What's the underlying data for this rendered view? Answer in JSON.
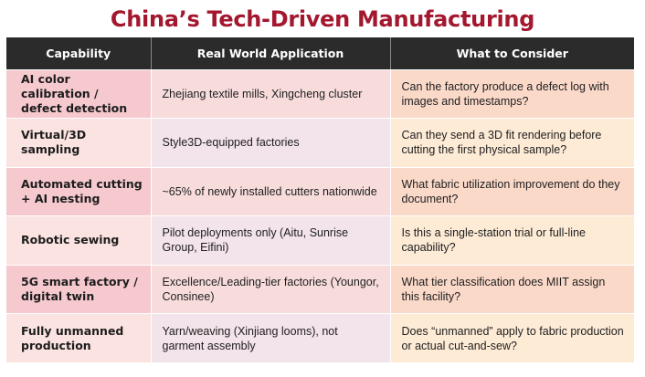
{
  "title": "China’s Tech-Driven Manufacturing",
  "table": {
    "headers": [
      "Capability",
      "Real World Application",
      "What to Consider"
    ],
    "rows": [
      {
        "capability": "AI color calibration / defect detection",
        "application": "Zhejiang textile mills, Xingcheng cluster",
        "consider": "Can the factory produce a defect log with images and timestamps?"
      },
      {
        "capability": "Virtual/3D sampling",
        "application": "Style3D-equipped factories",
        "consider": "Can they send a 3D fit rendering before cutting the first physical sample?"
      },
      {
        "capability": "Automated cutting + AI nesting",
        "application": "~65% of newly installed cutters nationwide",
        "consider": "What fabric utilization improvement do they document?"
      },
      {
        "capability": "Robotic sewing",
        "application": "Pilot deployments only (Aitu, Sunrise Group, Eifini)",
        "consider": "Is this a single-station trial or full-line capability?"
      },
      {
        "capability": "5G smart factory / digital twin",
        "application": "Excellence/Leading-tier factories (Youngor, Consinee)",
        "consider": "What tier classification does MIIT assign this facility?"
      },
      {
        "capability": "Fully unmanned production",
        "application": "Yarn/weaving (Xinjiang looms), not garment assembly",
        "consider": "Does “unmanned” apply to fabric production or actual cut-and-sew?"
      }
    ]
  },
  "colors": {
    "title": "#a3172f",
    "header_bg": "#2b2b2b",
    "header_text": "#ffffff",
    "row_pink": "#f6c9cf",
    "row_peach": "#fbd9c9"
  }
}
